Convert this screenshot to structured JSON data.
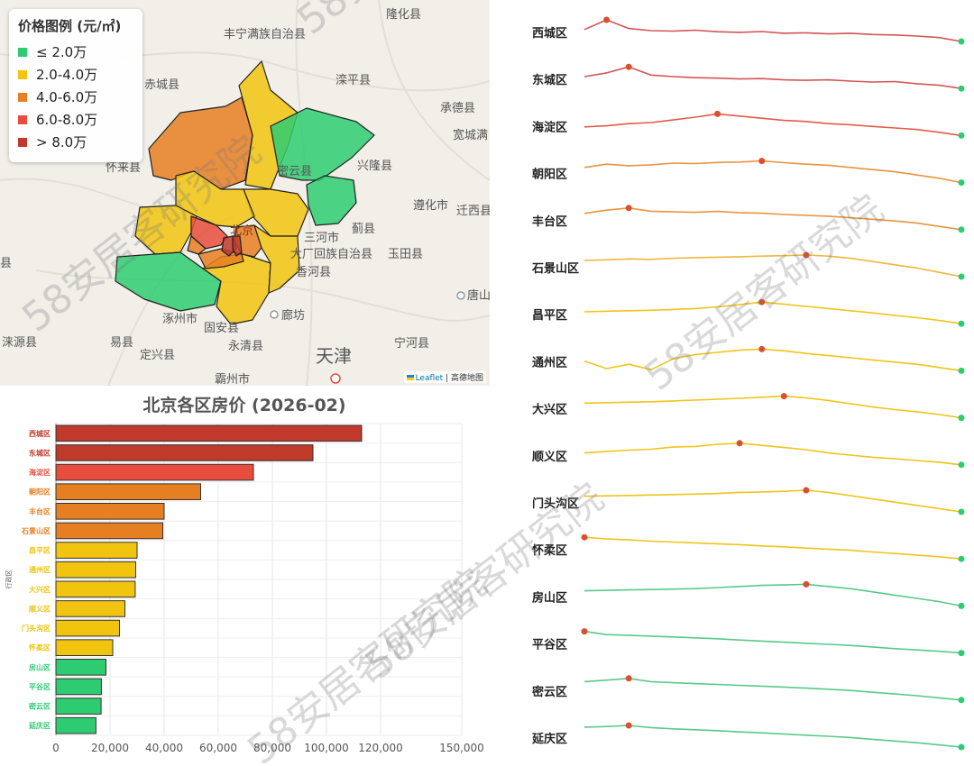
{
  "map": {
    "legend_title": "价格图例 (元/㎡)",
    "legend": [
      {
        "label": "≤ 2.0万",
        "color": "#2ecc71"
      },
      {
        "label": "2.0-4.0万",
        "color": "#f1c40f"
      },
      {
        "label": "4.0-6.0万",
        "color": "#e67e22"
      },
      {
        "label": "6.0-8.0万",
        "color": "#e74c3c"
      },
      {
        "label": "> 8.0万",
        "color": "#c0392b"
      }
    ],
    "place_labels": [
      "隆化县",
      "丰宁满族自治县",
      "赤城县",
      "滦平县",
      "承德县",
      "宽城满",
      "怀来县",
      "兴隆县",
      "遵化市",
      "迁西县",
      "蓟县",
      "三河市",
      "大厂回族自治县",
      "香河县",
      "玉田县",
      "唐山",
      "涿州市",
      "固安县",
      "廊坊",
      "涞源县",
      "易县",
      "定兴县",
      "永清县",
      "天津",
      "宁河县",
      "霸州市",
      "北京",
      "密云县",
      "县"
    ],
    "attribution_brand": "Leaflet",
    "attribution_sep": " | ",
    "attribution_provider": "高德地图"
  },
  "watermark": {
    "text": "58安居客研究院"
  },
  "chart_data": [
    {
      "type": "bar",
      "title": "北京各区房价 (2026-02)",
      "ylabel": "行政区",
      "xlabel": "",
      "orientation": "horizontal",
      "categories": [
        "西城区",
        "东城区",
        "海淀区",
        "朝阳区",
        "丰台区",
        "石景山区",
        "昌平区",
        "通州区",
        "大兴区",
        "顺义区",
        "门头沟区",
        "怀柔区",
        "房山区",
        "平谷区",
        "密云区",
        "延庆区"
      ],
      "values": [
        113000,
        95000,
        73000,
        53500,
        40000,
        39500,
        30000,
        29500,
        29300,
        25500,
        23500,
        21000,
        18500,
        16800,
        16700,
        14800
      ],
      "colors": [
        "#c0392b",
        "#c0392b",
        "#e74c3c",
        "#e67e22",
        "#e67e22",
        "#e67e22",
        "#f1c40f",
        "#f1c40f",
        "#f1c40f",
        "#f1c40f",
        "#f1c40f",
        "#f1c40f",
        "#2ecc71",
        "#2ecc71",
        "#2ecc71",
        "#2ecc71"
      ],
      "xlim": [
        0,
        150000
      ],
      "xticks": [
        0,
        20000,
        40000,
        60000,
        80000,
        100000,
        120000,
        150000
      ],
      "xtick_labels": [
        "0",
        "20,000",
        "40,000",
        "60,000",
        "80,000",
        "100,000",
        "120,000",
        "150,000"
      ],
      "grid": true
    },
    {
      "type": "line",
      "subtype": "sparklines",
      "series": [
        {
          "name": "西城区",
          "color": "#d35454",
          "values": [
            0.55,
            1.0,
            0.6,
            0.5,
            0.48,
            0.52,
            0.45,
            0.42,
            0.46,
            0.38,
            0.4,
            0.35,
            0.38,
            0.32,
            0.3,
            0.25,
            0.18,
            0.0
          ],
          "peak": 1
        },
        {
          "name": "东城区",
          "color": "#d35454",
          "values": [
            0.55,
            0.72,
            1.0,
            0.62,
            0.55,
            0.5,
            0.48,
            0.44,
            0.46,
            0.4,
            0.38,
            0.4,
            0.34,
            0.3,
            0.32,
            0.22,
            0.15,
            0.0
          ],
          "peak": 2
        },
        {
          "name": "海淀区",
          "color": "#e25b4a",
          "values": [
            0.4,
            0.45,
            0.55,
            0.6,
            0.72,
            0.85,
            1.0,
            0.9,
            0.8,
            0.7,
            0.65,
            0.55,
            0.5,
            0.42,
            0.35,
            0.28,
            0.15,
            0.0
          ],
          "peak": 6
        },
        {
          "name": "朝阳区",
          "color": "#e8943e",
          "values": [
            0.7,
            0.85,
            0.78,
            0.82,
            0.9,
            0.88,
            0.93,
            0.95,
            1.0,
            0.92,
            0.85,
            0.8,
            0.7,
            0.6,
            0.5,
            0.35,
            0.2,
            0.0
          ],
          "peak": 8
        },
        {
          "name": "丰台区",
          "color": "#e8943e",
          "values": [
            0.75,
            0.9,
            1.0,
            0.85,
            0.82,
            0.8,
            0.84,
            0.78,
            0.76,
            0.7,
            0.66,
            0.62,
            0.55,
            0.48,
            0.4,
            0.3,
            0.15,
            0.0
          ],
          "peak": 2
        },
        {
          "name": "石景山区",
          "color": "#eeb83a",
          "values": [
            0.75,
            0.78,
            0.82,
            0.8,
            0.85,
            0.88,
            0.9,
            0.92,
            0.95,
            0.97,
            1.0,
            0.95,
            0.85,
            0.7,
            0.55,
            0.4,
            0.2,
            0.0
          ],
          "peak": 10
        },
        {
          "name": "昌平区",
          "color": "#f0c419",
          "values": [
            0.55,
            0.58,
            0.6,
            0.62,
            0.66,
            0.7,
            0.78,
            0.88,
            1.0,
            0.9,
            0.8,
            0.7,
            0.6,
            0.5,
            0.38,
            0.28,
            0.15,
            0.0
          ],
          "peak": 8
        },
        {
          "name": "通州区",
          "color": "#f0c419",
          "values": [
            0.45,
            0.1,
            0.3,
            0.05,
            0.55,
            0.75,
            0.85,
            0.95,
            1.0,
            0.92,
            0.8,
            0.7,
            0.6,
            0.5,
            0.4,
            0.3,
            0.15,
            0.0
          ],
          "peak": 8
        },
        {
          "name": "大兴区",
          "color": "#f0c419",
          "values": [
            0.68,
            0.7,
            0.72,
            0.74,
            0.78,
            0.82,
            0.86,
            0.9,
            0.95,
            1.0,
            0.92,
            0.8,
            0.65,
            0.5,
            0.38,
            0.28,
            0.15,
            0.0
          ],
          "peak": 9
        },
        {
          "name": "顺义区",
          "color": "#f0c419",
          "values": [
            0.55,
            0.62,
            0.68,
            0.72,
            0.82,
            0.85,
            0.95,
            1.0,
            0.9,
            0.8,
            0.7,
            0.55,
            0.45,
            0.35,
            0.28,
            0.2,
            0.12,
            0.0
          ],
          "peak": 7
        },
        {
          "name": "门头沟区",
          "color": "#f0c419",
          "values": [
            0.72,
            0.74,
            0.76,
            0.78,
            0.8,
            0.82,
            0.85,
            0.9,
            0.92,
            0.95,
            1.0,
            0.9,
            0.75,
            0.6,
            0.45,
            0.3,
            0.15,
            0.0
          ],
          "peak": 10
        },
        {
          "name": "怀柔区",
          "color": "#f0c419",
          "values": [
            1.0,
            0.92,
            0.88,
            0.82,
            0.78,
            0.74,
            0.7,
            0.66,
            0.6,
            0.56,
            0.5,
            0.45,
            0.4,
            0.32,
            0.25,
            0.18,
            0.1,
            0.0
          ],
          "peak": 0
        },
        {
          "name": "房山区",
          "color": "#58c98a",
          "values": [
            0.7,
            0.72,
            0.74,
            0.76,
            0.78,
            0.8,
            0.85,
            0.9,
            0.95,
            0.97,
            1.0,
            0.9,
            0.8,
            0.65,
            0.5,
            0.35,
            0.2,
            0.0
          ],
          "peak": 10
        },
        {
          "name": "平谷区",
          "color": "#58c98a",
          "values": [
            1.0,
            0.85,
            0.82,
            0.78,
            0.74,
            0.7,
            0.66,
            0.6,
            0.55,
            0.5,
            0.45,
            0.4,
            0.35,
            0.28,
            0.2,
            0.14,
            0.08,
            0.0
          ],
          "peak": 0
        },
        {
          "name": "密云区",
          "color": "#58c98a",
          "values": [
            0.85,
            0.92,
            1.0,
            0.85,
            0.8,
            0.76,
            0.72,
            0.68,
            0.64,
            0.6,
            0.55,
            0.5,
            0.44,
            0.36,
            0.28,
            0.2,
            0.1,
            0.0
          ],
          "peak": 2
        },
        {
          "name": "延庆区",
          "color": "#58c98a",
          "values": [
            0.92,
            0.95,
            1.0,
            0.9,
            0.84,
            0.8,
            0.76,
            0.7,
            0.66,
            0.6,
            0.55,
            0.5,
            0.44,
            0.36,
            0.28,
            0.2,
            0.1,
            0.0
          ],
          "peak": 2
        }
      ]
    }
  ]
}
